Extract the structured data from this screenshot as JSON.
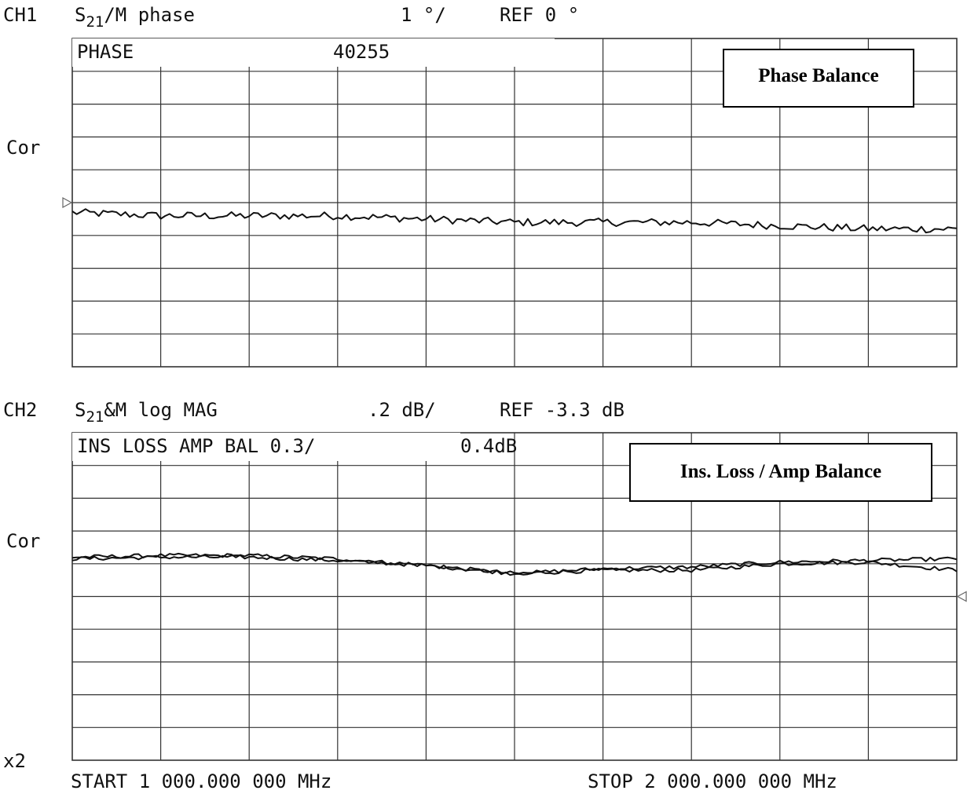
{
  "colors": {
    "ink": "#111111",
    "grid": "#333333",
    "background": "#ffffff"
  },
  "ch1": {
    "channel": "CH1",
    "param_base": "S",
    "param_sub": "21",
    "param_rest": "/M phase",
    "scale": "1 °/",
    "ref": "REF 0 °",
    "side_label": "Cor",
    "box_label": "PHASE",
    "box_value": "40255",
    "overlay_title": "Phase Balance"
  },
  "ch2": {
    "channel": "CH2",
    "param_base": "S",
    "param_sub": "21",
    "param_rest": "&M log MAG",
    "scale": ".2 dB/",
    "ref": "REF -3.3 dB",
    "side_label": "Cor",
    "box_label": "INS LOSS AMP BAL 0.3/",
    "box_value": "0.4dB",
    "overlay_title": "Ins. Loss / Amp Balance"
  },
  "footer": {
    "x2_label": "x2",
    "start": "START 1 000.000 000 MHz",
    "stop": "STOP 2 000.000 000 MHz"
  },
  "chart_data": [
    {
      "type": "line",
      "y_unit": "degrees",
      "x_start_mhz": 1000,
      "x_stop_mhz": 2000,
      "grid": true,
      "divisions_x": 10,
      "divisions_y": 10,
      "ylim": [
        -5,
        5
      ],
      "reference_value": 0,
      "series": [
        {
          "x": [
            1000,
            1100,
            1200,
            1300,
            1400,
            1500,
            1600,
            1700,
            1800,
            1900,
            2000
          ],
          "values": [
            -0.3,
            -0.4,
            -0.4,
            -0.4,
            -0.5,
            -0.6,
            -0.6,
            -0.6,
            -0.7,
            -0.8,
            -0.8
          ]
        }
      ]
    },
    {
      "type": "line",
      "y_unit": "dB",
      "x_start_mhz": 1000,
      "x_stop_mhz": 2000,
      "grid": true,
      "divisions_x": 10,
      "divisions_y": 10,
      "ylim": [
        -4.3,
        -2.3
      ],
      "reference_value": -3.3,
      "series": [
        {
          "x": [
            1000,
            1100,
            1200,
            1300,
            1400,
            1500,
            1600,
            1700,
            1800,
            1900,
            2000
          ],
          "values": [
            -3.06,
            -3.05,
            -3.05,
            -3.07,
            -3.11,
            -3.16,
            -3.14,
            -3.14,
            -3.1,
            -3.09,
            -3.14
          ]
        },
        {
          "x": [
            1000,
            1100,
            1200,
            1300,
            1400,
            1500,
            1600,
            1700,
            1800,
            1900,
            2000
          ],
          "values": [
            -3.07,
            -3.06,
            -3.06,
            -3.08,
            -3.11,
            -3.16,
            -3.13,
            -3.12,
            -3.09,
            -3.08,
            -3.07
          ]
        }
      ]
    }
  ]
}
